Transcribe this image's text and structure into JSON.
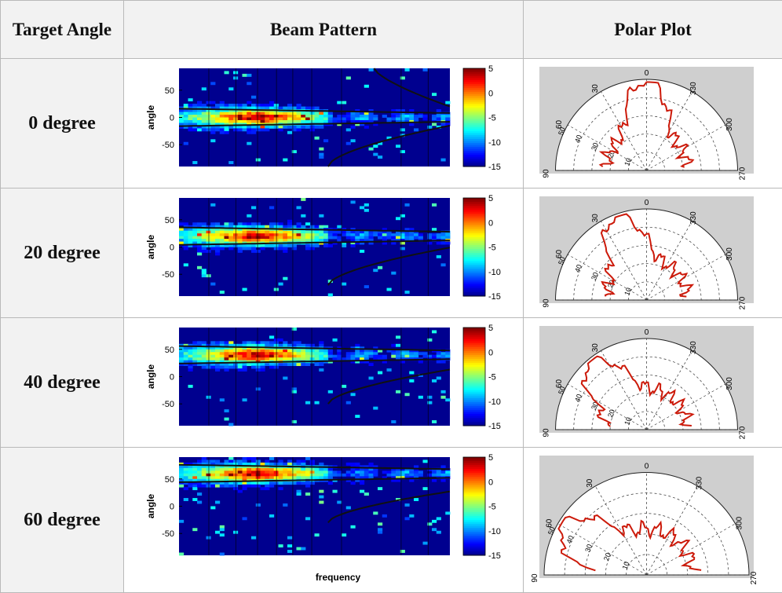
{
  "headers": {
    "target_angle": "Target Angle",
    "beam_pattern": "Beam Pattern",
    "polar_plot": "Polar Plot"
  },
  "rows": [
    {
      "label": "0 degree",
      "target": 0
    },
    {
      "label": "20 degree",
      "target": 20
    },
    {
      "label": "40 degree",
      "target": 40
    },
    {
      "label": "60 degree",
      "target": 60
    }
  ],
  "beam": {
    "ylabel": "angle",
    "xlabel": "frequency",
    "yticks": [
      "50",
      "0",
      "-50"
    ],
    "colorbar_ticks": [
      "5",
      "0",
      "-5",
      "-10",
      "-15"
    ],
    "colormap": "jet"
  },
  "polar": {
    "angle_labels": [
      "0",
      "30",
      "330",
      "60",
      "300",
      "90",
      "270"
    ],
    "radial_labels": [
      "10",
      "20",
      "30",
      "40",
      "50"
    ],
    "trace_color": "#cc1a0a"
  },
  "chart_data": [
    {
      "type": "heatmap",
      "title": "",
      "ylabel": "angle",
      "ylim": [
        -90,
        90
      ],
      "beam_center": 0,
      "color_range": [
        -15,
        5
      ]
    },
    {
      "type": "heatmap",
      "title": "",
      "ylabel": "angle",
      "ylim": [
        -90,
        90
      ],
      "beam_center": 20,
      "color_range": [
        -15,
        5
      ]
    },
    {
      "type": "heatmap",
      "title": "",
      "ylabel": "angle",
      "ylim": [
        -90,
        90
      ],
      "beam_center": 40,
      "color_range": [
        -15,
        5
      ]
    },
    {
      "type": "heatmap",
      "title": "",
      "xlabel": "frequency",
      "ylabel": "angle",
      "ylim": [
        -90,
        90
      ],
      "beam_center": 60,
      "color_range": [
        -15,
        5
      ]
    }
  ]
}
